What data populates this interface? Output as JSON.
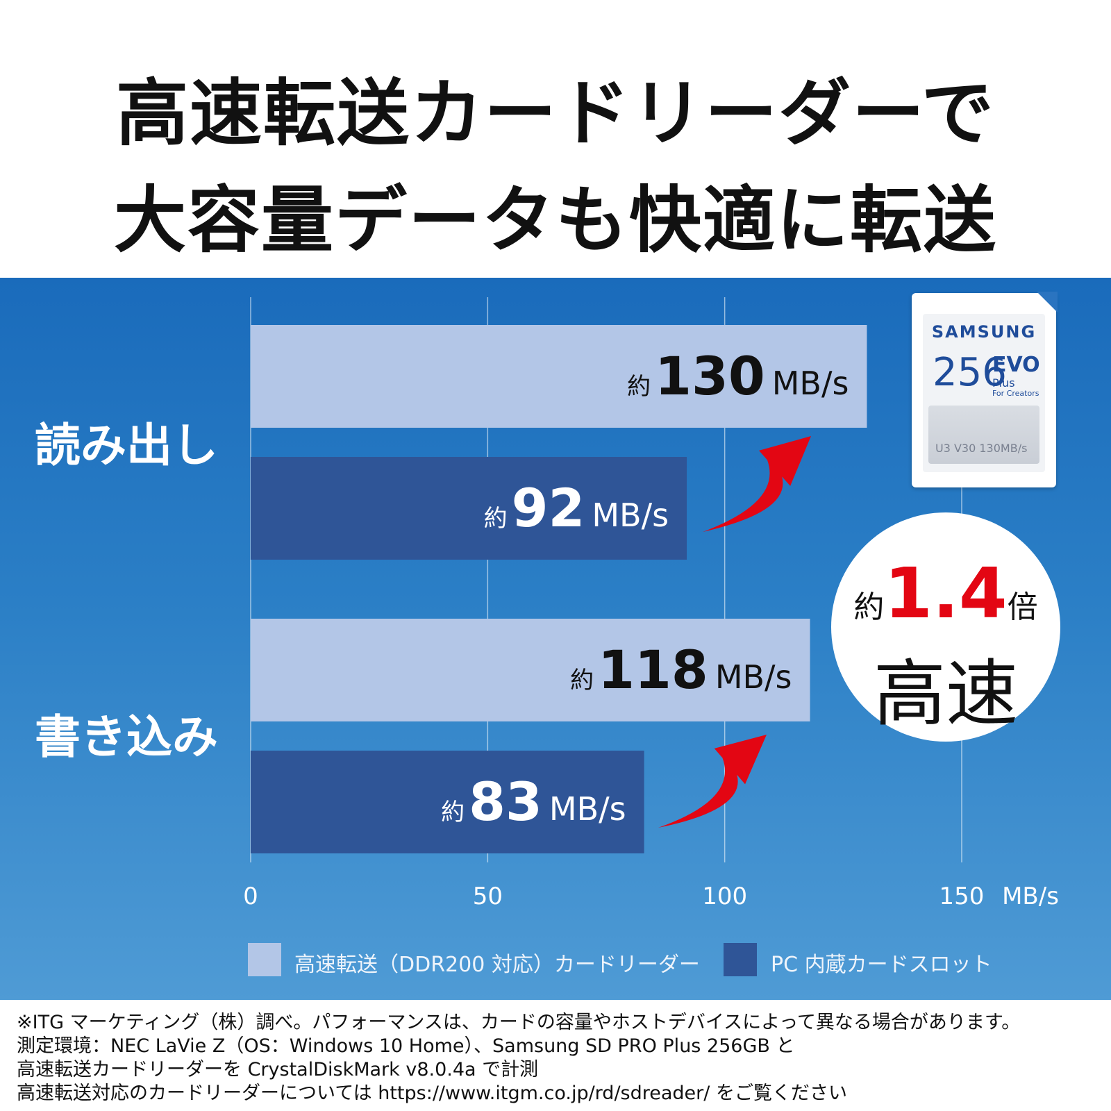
{
  "headline": {
    "line1": "高速転送カードリーダーで",
    "line2": "大容量データも快適に転送"
  },
  "row_labels": [
    "読み出し",
    "書き込み"
  ],
  "chart_data": {
    "type": "bar",
    "orientation": "horizontal",
    "categories": [
      "読み出し",
      "書き込み"
    ],
    "series": [
      {
        "name": "高速転送（DDR200 対応）カードリーダー",
        "values": [
          130,
          118
        ],
        "color": "#b3c6e7"
      },
      {
        "name": "PC 内蔵カードスロット",
        "values": [
          92,
          83
        ],
        "color": "#2f5597"
      }
    ],
    "bar_labels": [
      [
        {
          "prefix": "約",
          "value": "130",
          "unit": "MB/s"
        },
        {
          "prefix": "約",
          "value": "118",
          "unit": "MB/s"
        }
      ],
      [
        {
          "prefix": "約",
          "value": "92",
          "unit": "MB/s"
        },
        {
          "prefix": "約",
          "value": "83",
          "unit": "MB/s"
        }
      ]
    ],
    "xlim": [
      0,
      150
    ],
    "xticks": [
      "0",
      "50",
      "100",
      "150"
    ],
    "xunit": "MB/s",
    "grid": true,
    "legend_position": "bottom"
  },
  "sd_card": {
    "brand": "SAMSUNG",
    "capacity": "256",
    "line": "EVO",
    "sub": "Plus",
    "creators": "For Creators",
    "speed_mark": "U3 V30 130MB/s"
  },
  "badge": {
    "prefix": "約",
    "multiplier": "1.4",
    "suffix": "倍",
    "main": "高速"
  },
  "notes": [
    "※ITG マーケティング（株）調べ。パフォーマンスは、カードの容量やホストデバイスによって異なる場合があります。",
    "測定環境：NEC LaVie Z（OS：Windows 10 Home）、Samsung SD PRO Plus 256GB と",
    "高速転送カードリーダーを CrystalDiskMark v8.0.4a で計測",
    "高速転送対応のカードリーダーについては https://www.itgm.co.jp/rd/sdreader/ をご覧ください"
  ],
  "colors": {
    "light_bar": "#b3c6e7",
    "dark_bar": "#2f5597",
    "arrow": "#e30613",
    "accent": "#e30613"
  }
}
